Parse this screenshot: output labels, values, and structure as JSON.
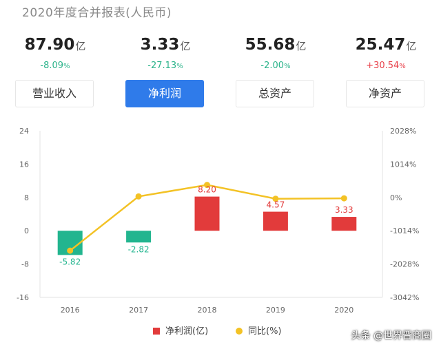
{
  "header": {
    "title": "2020年度合并报表(人民币)"
  },
  "metrics": [
    {
      "value": "87.90",
      "unit": "亿",
      "change": "-8.09",
      "change_unit": "%",
      "direction": "neg",
      "tab_label": "营业收入",
      "active": false
    },
    {
      "value": "3.33",
      "unit": "亿",
      "change": "-27.13",
      "change_unit": "%",
      "direction": "neg",
      "tab_label": "净利润",
      "active": true
    },
    {
      "value": "55.68",
      "unit": "亿",
      "change": "-2.00",
      "change_unit": "%",
      "direction": "neg",
      "tab_label": "总资产",
      "active": false
    },
    {
      "value": "25.47",
      "unit": "亿",
      "change": "+30.54",
      "change_unit": "%",
      "direction": "pos",
      "tab_label": "净资产",
      "active": false
    }
  ],
  "chart_data": {
    "type": "bar",
    "categories": [
      "2016",
      "2017",
      "2018",
      "2019",
      "2020"
    ],
    "series": [
      {
        "name": "净利润(亿)",
        "type": "bar",
        "values": [
          -5.82,
          -2.82,
          8.2,
          4.57,
          3.33
        ],
        "labels": [
          "-5.82",
          "-2.82",
          "8.20",
          "4.57",
          "3.33"
        ]
      },
      {
        "name": "同比(%)",
        "type": "line",
        "values": [
          -1620,
          30,
          380,
          -40,
          -27.13
        ]
      }
    ],
    "left_axis": {
      "ticks": [
        "24",
        "16",
        "8",
        "0",
        "-8",
        "-16"
      ],
      "ylim": [
        -16,
        24
      ]
    },
    "right_axis": {
      "ticks": [
        "2028%",
        "1014%",
        "0%",
        "-1014%",
        "-2028%",
        "-3042%"
      ],
      "ylim": [
        -3042,
        2028
      ]
    },
    "colors": {
      "positive": "#e23b3b",
      "negative": "#22b58f",
      "line": "#f3c225"
    },
    "legend_position": "bottom-center"
  },
  "watermark": "头条 @世界晋商圈"
}
